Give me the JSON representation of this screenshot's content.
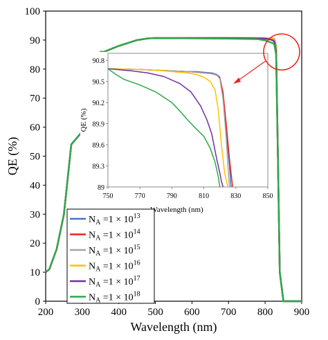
{
  "chart_data": [
    {
      "type": "line",
      "xlabel": "Wavelength (nm)",
      "ylabel": "QE (%)",
      "xlim": [
        200,
        900
      ],
      "ylim": [
        0,
        100
      ],
      "xticks": [
        "200",
        "300",
        "400",
        "500",
        "600",
        "700",
        "800",
        "900"
      ],
      "yticks": [
        "0",
        "10",
        "20",
        "30",
        "40",
        "50",
        "60",
        "70",
        "80",
        "90",
        "100"
      ],
      "grid": false,
      "legend_position": "bottom-left",
      "series": [
        {
          "name": "N_A = 1 × 10^13",
          "label_base": "N",
          "label_sub": "A",
          "label_mid": " =1 × 10",
          "label_sup": "13",
          "color": "#4472C4",
          "x": [
            200,
            210,
            230,
            250,
            270,
            290,
            310,
            320,
            330,
            340,
            350,
            360,
            380,
            400,
            450,
            480,
            500,
            600,
            700,
            780,
            800,
            810,
            820,
            825,
            830,
            835,
            840,
            850,
            900
          ],
          "y": [
            10,
            11,
            18,
            30,
            54,
            57,
            60,
            64,
            66,
            70,
            86,
            86,
            87,
            88,
            90,
            90.6,
            90.7,
            90.7,
            90.7,
            90.68,
            90.66,
            90.62,
            90.55,
            90.3,
            88,
            50,
            10,
            0,
            0
          ]
        },
        {
          "name": "N_A = 1 × 10^14",
          "label_base": "N",
          "label_sub": "A",
          "label_mid": " =1 × 10",
          "label_sup": "14",
          "color": "#E8251F",
          "x": [
            200,
            210,
            230,
            250,
            270,
            290,
            310,
            320,
            330,
            340,
            350,
            360,
            380,
            400,
            450,
            480,
            500,
            600,
            700,
            780,
            800,
            810,
            820,
            825,
            830,
            835,
            840,
            850,
            900
          ],
          "y": [
            10,
            11,
            18,
            30,
            54,
            57,
            60,
            64,
            66,
            70,
            86,
            86,
            87,
            88,
            90,
            90.6,
            90.7,
            90.7,
            90.7,
            90.68,
            90.66,
            90.62,
            90.55,
            90.3,
            88,
            50,
            10,
            0,
            0
          ]
        },
        {
          "name": "N_A = 1 × 10^15",
          "label_base": "N",
          "label_sub": "A",
          "label_mid": " =1 × 10",
          "label_sup": "15",
          "color": "#A5A5A5",
          "x": [
            200,
            210,
            230,
            250,
            270,
            290,
            310,
            320,
            330,
            340,
            350,
            360,
            380,
            400,
            450,
            480,
            500,
            600,
            700,
            780,
            800,
            810,
            820,
            825,
            830,
            835,
            840,
            850,
            900
          ],
          "y": [
            10,
            11,
            18,
            30,
            54,
            57,
            60,
            64,
            66,
            70,
            86,
            86,
            87,
            88,
            90,
            90.6,
            90.7,
            90.7,
            90.7,
            90.68,
            90.66,
            90.62,
            90.55,
            90.2,
            88,
            50,
            10,
            0,
            0
          ]
        },
        {
          "name": "N_A = 1 × 10^16",
          "label_base": "N",
          "label_sub": "A",
          "label_mid": " =1 × 10",
          "label_sup": "16",
          "color": "#FFC000",
          "x": [
            200,
            210,
            230,
            250,
            270,
            290,
            310,
            320,
            330,
            340,
            350,
            360,
            380,
            400,
            450,
            480,
            500,
            600,
            700,
            780,
            800,
            810,
            820,
            825,
            830,
            835,
            840,
            850,
            900
          ],
          "y": [
            10,
            11,
            18,
            30,
            54,
            57,
            60,
            64,
            66,
            70,
            86,
            86,
            87,
            88,
            90,
            90.6,
            90.7,
            90.7,
            90.7,
            90.66,
            90.62,
            90.55,
            90.4,
            90.0,
            87,
            50,
            10,
            0,
            0
          ]
        },
        {
          "name": "N_A = 1 × 10^17",
          "label_base": "N",
          "label_sub": "A",
          "label_mid": " =1 × 10",
          "label_sup": "17",
          "color": "#7030A0",
          "x": [
            200,
            210,
            230,
            250,
            270,
            290,
            310,
            320,
            330,
            340,
            350,
            360,
            380,
            400,
            450,
            480,
            500,
            600,
            700,
            780,
            800,
            810,
            820,
            825,
            830,
            835,
            840,
            850,
            900
          ],
          "y": [
            10,
            11,
            18,
            30,
            54,
            57,
            60,
            64,
            66,
            70,
            86,
            86,
            87,
            88,
            90,
            90.6,
            90.7,
            90.7,
            90.7,
            90.6,
            90.5,
            90.3,
            90.0,
            89.5,
            86,
            50,
            10,
            0,
            0
          ]
        },
        {
          "name": "N_A = 1 × 10^18",
          "label_base": "N",
          "label_sub": "A",
          "label_mid": " =1 × 10",
          "label_sup": "18",
          "color": "#2EA84A",
          "x": [
            200,
            210,
            230,
            250,
            270,
            290,
            310,
            320,
            330,
            340,
            350,
            360,
            380,
            400,
            450,
            480,
            500,
            600,
            700,
            780,
            800,
            810,
            820,
            825,
            830,
            835,
            840,
            850,
            900
          ],
          "y": [
            10,
            11,
            18,
            30,
            54,
            57,
            60,
            64,
            66,
            70,
            86,
            86,
            87,
            88,
            90,
            90.6,
            90.7,
            90.6,
            90.5,
            90.3,
            89.9,
            89.4,
            89,
            88.5,
            85,
            50,
            10,
            0,
            0
          ]
        }
      ]
    },
    {
      "type": "line",
      "role": "inset",
      "xlabel": "Wavelength (nm)",
      "ylabel": "QE (%)",
      "xlim": [
        750,
        850
      ],
      "ylim": [
        89,
        90.9
      ],
      "xticks": [
        "750",
        "770",
        "790",
        "810",
        "830",
        "850"
      ],
      "yticks": [
        "89",
        "89.3",
        "89.6",
        "89.9",
        "90.2",
        "90.5",
        "90.8"
      ],
      "series": [
        {
          "name": "N_A = 1 × 10^13",
          "color": "#4472C4",
          "x": [
            750,
            770,
            790,
            800,
            805,
            810,
            815,
            818,
            820,
            822,
            824,
            826,
            827
          ],
          "y": [
            90.68,
            90.67,
            90.65,
            90.64,
            90.64,
            90.63,
            90.62,
            90.6,
            90.56,
            90.3,
            89.8,
            89.3,
            89
          ]
        },
        {
          "name": "N_A = 1 × 10^14",
          "color": "#E8251F",
          "x": [
            750,
            770,
            790,
            800,
            805,
            810,
            815,
            818,
            820,
            822,
            824,
            826,
            828
          ],
          "y": [
            90.68,
            90.67,
            90.65,
            90.64,
            90.63,
            90.62,
            90.61,
            90.59,
            90.55,
            90.35,
            89.9,
            89.4,
            89
          ]
        },
        {
          "name": "N_A = 1 × 10^15",
          "color": "#A5A5A5",
          "x": [
            750,
            770,
            790,
            800,
            805,
            810,
            815,
            818,
            820,
            822,
            824,
            825,
            826
          ],
          "y": [
            90.68,
            90.67,
            90.65,
            90.64,
            90.63,
            90.62,
            90.61,
            90.59,
            90.54,
            90.25,
            89.7,
            89.3,
            89
          ]
        },
        {
          "name": "N_A = 1 × 10^16",
          "color": "#FFC000",
          "x": [
            750,
            770,
            780,
            790,
            800,
            805,
            810,
            814,
            817,
            819,
            821,
            823,
            825
          ],
          "y": [
            90.68,
            90.67,
            90.66,
            90.64,
            90.62,
            90.6,
            90.56,
            90.5,
            90.38,
            90.1,
            89.6,
            89.2,
            89
          ]
        },
        {
          "name": "N_A = 1 × 10^17",
          "color": "#7030A0",
          "x": [
            750,
            765,
            775,
            785,
            795,
            802,
            808,
            812,
            815,
            818,
            820,
            821,
            822
          ],
          "y": [
            90.68,
            90.65,
            90.62,
            90.57,
            90.47,
            90.35,
            90.15,
            89.95,
            89.75,
            89.4,
            89.2,
            89.08,
            89
          ]
        },
        {
          "name": "N_A = 1 × 10^18",
          "color": "#2EA84A",
          "x": [
            750,
            755,
            760,
            770,
            780,
            790,
            795,
            800,
            805,
            810,
            814,
            817,
            819,
            820
          ],
          "y": [
            90.68,
            90.6,
            90.53,
            90.45,
            90.35,
            90.2,
            90.08,
            89.95,
            89.83,
            89.72,
            89.55,
            89.35,
            89.15,
            89
          ]
        }
      ]
    }
  ],
  "annotation": {
    "circle_color": "#E8251F",
    "arrow_color": "#E8251F"
  }
}
